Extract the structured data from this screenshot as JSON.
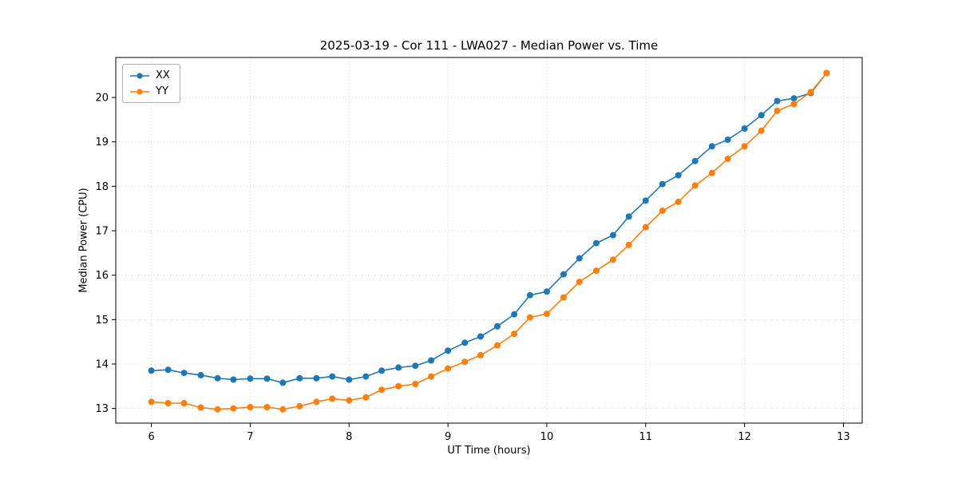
{
  "chart_data": {
    "type": "line",
    "title": "2025-03-19 - Cor 111 - LWA027 - Median Power vs. Time",
    "xlabel": "UT Time (hours)",
    "ylabel": "Median Power (CPU)",
    "xlim": [
      5.64,
      13.19
    ],
    "ylim": [
      12.67,
      20.9
    ],
    "xticks": [
      6,
      7,
      8,
      9,
      10,
      11,
      12,
      13
    ],
    "yticks": [
      13,
      14,
      15,
      16,
      17,
      18,
      19,
      20
    ],
    "grid": true,
    "legend_position": "upper-left",
    "x": [
      6.0,
      6.17,
      6.33,
      6.5,
      6.67,
      6.83,
      7.0,
      7.17,
      7.33,
      7.5,
      7.67,
      7.83,
      8.0,
      8.17,
      8.33,
      8.5,
      8.67,
      8.83,
      9.0,
      9.17,
      9.33,
      9.5,
      9.67,
      9.83,
      10.0,
      10.17,
      10.33,
      10.5,
      10.67,
      10.83,
      11.0,
      11.17,
      11.33,
      11.5,
      11.67,
      11.83,
      12.0,
      12.17,
      12.33,
      12.5,
      12.67,
      12.83
    ],
    "series": [
      {
        "name": "XX",
        "color": "#1f77b4",
        "values": [
          13.85,
          13.87,
          13.8,
          13.75,
          13.68,
          13.65,
          13.67,
          13.67,
          13.58,
          13.68,
          13.68,
          13.72,
          13.65,
          13.72,
          13.85,
          13.92,
          13.96,
          14.08,
          14.3,
          14.48,
          14.62,
          14.85,
          15.12,
          15.55,
          15.63,
          16.02,
          16.38,
          16.72,
          16.9,
          17.32,
          17.68,
          18.05,
          18.25,
          18.57,
          18.9,
          19.05,
          19.3,
          19.6,
          19.92,
          19.98,
          20.1,
          20.55
        ]
      },
      {
        "name": "YY",
        "color": "#ff7f0e",
        "values": [
          13.15,
          13.12,
          13.12,
          13.02,
          12.98,
          13.0,
          13.03,
          13.03,
          12.98,
          13.05,
          13.15,
          13.22,
          13.18,
          13.25,
          13.42,
          13.5,
          13.55,
          13.72,
          13.9,
          14.05,
          14.2,
          14.42,
          14.68,
          15.05,
          15.13,
          15.5,
          15.85,
          16.1,
          16.35,
          16.68,
          17.08,
          17.45,
          17.65,
          18.02,
          18.3,
          18.62,
          18.9,
          19.25,
          19.7,
          19.85,
          20.12,
          20.55
        ]
      }
    ]
  }
}
